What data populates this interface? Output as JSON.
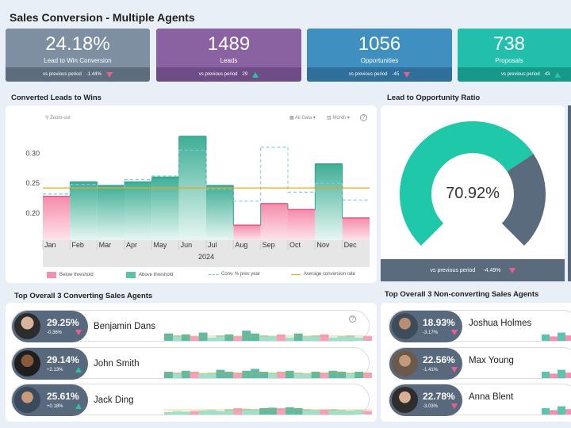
{
  "title": "Sales Conversion - Multiple Agents",
  "kpis": [
    {
      "value": "24.18%",
      "label": "Lead to Win Conversion",
      "prev_label": "vs previous period",
      "change": "-1.44%",
      "direction": "down"
    },
    {
      "value": "1489",
      "label": "Leads",
      "prev_label": "vs previous period",
      "change": "29",
      "direction": "up"
    },
    {
      "value": "1056",
      "label": "Opportunities",
      "prev_label": "vs previous period",
      "change": "-45",
      "direction": "down"
    },
    {
      "value": "738",
      "label": "Proposals",
      "prev_label": "vs previous period",
      "change": "43",
      "direction": "up"
    }
  ],
  "converted": {
    "title": "Converted Leads to Wins",
    "zoom_out": "Zoom-out",
    "all_data": "All Data",
    "period": "Month",
    "year": "2024",
    "legend": [
      "Below threshold",
      "Above threshold",
      "Conv. % prev year",
      "Average conversion rate"
    ]
  },
  "chart_data": {
    "type": "area",
    "categories": [
      "Jan",
      "Feb",
      "Mar",
      "Apr",
      "May",
      "Jun",
      "Jul",
      "Aug",
      "Sep",
      "Oct",
      "Nov",
      "Dec"
    ],
    "series": [
      {
        "name": "Conversion %",
        "values": [
          0.228,
          0.252,
          0.246,
          0.252,
          0.26,
          0.328,
          0.246,
          0.18,
          0.216,
          0.206,
          0.282,
          0.192
        ]
      },
      {
        "name": "Conv. % prev year",
        "values": [
          0.232,
          0.248,
          0.242,
          0.256,
          0.262,
          0.305,
          0.24,
          0.22,
          0.31,
          0.235,
          0.25,
          0.222
        ]
      }
    ],
    "threshold": 0.242,
    "yticks": [
      0.2,
      0.25,
      0.3
    ],
    "ytick_labels": [
      "0.20",
      "0.25",
      "0.30"
    ],
    "ylim": [
      0.155,
      0.34
    ]
  },
  "ratio": {
    "title": "Lead to Opportunity Ratio",
    "value": "70.92%",
    "fraction": 0.7092,
    "prev_label": "vs previous period",
    "change": "-4.49%",
    "colors": {
      "fill": "#1fc8a8",
      "rest": "#5b6b7e"
    }
  },
  "top_converting": {
    "title": "Top Overall 3 Converting Sales Agents",
    "help": "?",
    "agents": [
      {
        "pct": "29.25%",
        "change": "-0.36%",
        "direction": "down",
        "name": "Benjamin Dans",
        "spark": [
          0.6,
          0.4,
          0.5,
          0.3,
          0.7,
          0.2,
          0.4,
          0.5,
          0.3,
          0.9,
          0.6,
          0.4,
          0.3,
          0.5,
          0.2,
          0.6,
          0.3,
          0.4,
          0.5,
          0.2,
          0.3,
          0.4,
          0.2,
          0.3
        ]
      },
      {
        "pct": "29.14%",
        "change": "+2.13%",
        "direction": "up",
        "name": "John Smith",
        "spark": [
          0.5,
          0.4,
          0.6,
          0.5,
          0.3,
          0.4,
          0.7,
          0.5,
          0.4,
          0.6,
          0.8,
          0.5,
          0.4,
          0.5,
          0.6,
          0.4,
          0.3,
          0.5,
          0.4,
          0.6,
          0.5,
          0.4,
          0.5,
          0.4
        ]
      },
      {
        "pct": "25.61%",
        "change": "+0.18%",
        "direction": "up",
        "name": "Jack Ding",
        "spark": [
          0.1,
          0.2,
          0.15,
          0.2,
          0.25,
          0.3,
          0.2,
          0.4,
          0.5,
          0.45,
          0.4,
          0.5,
          0.55,
          0.5,
          0.6,
          0.5,
          0.4,
          0.3,
          0.35,
          0.4,
          0.3,
          0.25,
          0.3,
          0.2
        ]
      }
    ]
  },
  "top_nonconverting": {
    "title": "Top Overall 3 Non-converting Sales Agents",
    "agents": [
      {
        "pct": "18.93%",
        "change": "-3.17%",
        "direction": "down",
        "name": "Joshua Holmes"
      },
      {
        "pct": "22.56%",
        "change": "-1.41%",
        "direction": "down",
        "name": "Max Young"
      },
      {
        "pct": "22.78%",
        "change": "-3.03%",
        "direction": "down",
        "name": "Anna Blent"
      }
    ]
  }
}
